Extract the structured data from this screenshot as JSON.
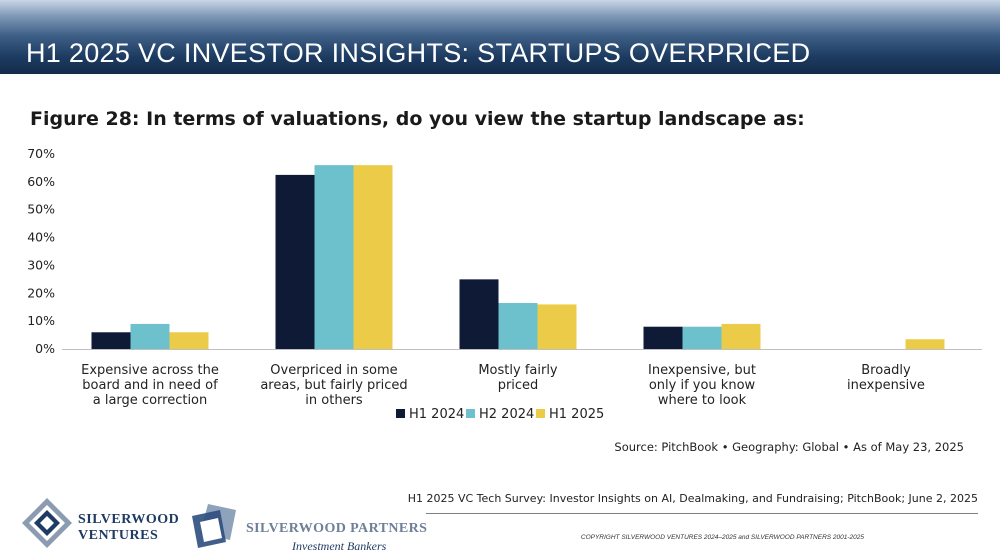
{
  "header": {
    "title": "H1 2025 VC INVESTOR INSIGHTS: STARTUPS OVERPRICED"
  },
  "figure": {
    "title": "Figure 28: In terms of valuations, do you view the startup landscape as:"
  },
  "chart_data": {
    "type": "bar",
    "title": "Figure 28: In terms of valuations, do you view the startup landscape as:",
    "xlabel": "",
    "ylabel": "",
    "ylim": [
      0,
      70
    ],
    "yticks": [
      "0%",
      "10%",
      "20%",
      "30%",
      "40%",
      "50%",
      "60%",
      "70%"
    ],
    "categories": [
      [
        "Expensive across the",
        "board and in need of",
        "a large correction"
      ],
      [
        "Overpriced in some",
        "areas, but fairly priced",
        "in others"
      ],
      [
        "Mostly fairly",
        "priced"
      ],
      [
        "Inexpensive, but",
        "only if you know",
        "where to look"
      ],
      [
        "Broadly",
        "inexpensive"
      ]
    ],
    "series": [
      {
        "name": "H1 2024",
        "color": "#0e1a36",
        "values": [
          6,
          62.5,
          25,
          8,
          0
        ]
      },
      {
        "name": "H2 2024",
        "color": "#6cc1cc",
        "values": [
          9,
          66,
          16.5,
          8,
          0
        ]
      },
      {
        "name": "H1 2025",
        "color": "#eccb49",
        "values": [
          6,
          66,
          16,
          9,
          3.5
        ]
      }
    ],
    "legend": "bottom-center",
    "grid": false
  },
  "source": "Source: PitchBook • Geography: Global • As of May 23, 2025",
  "footer": {
    "survey": "H1 2025 VC Tech Survey: Investor Insights on AI, Dealmaking, and Fundraising; PitchBook; June 2, 2025",
    "copyright": "COPYRIGHT SILVERWOOD VENTURES 2024–2025 and SILVERWOOD PARTNERS 2001-2025"
  },
  "logos": {
    "ventures": {
      "line1": "SILVERWOOD",
      "line2": "VENTURES"
    },
    "partners": {
      "line1": "SILVERWOOD PARTNERS",
      "line2": "Investment Bankers"
    }
  }
}
